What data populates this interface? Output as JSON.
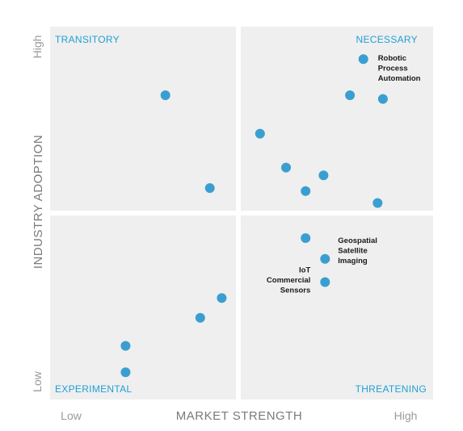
{
  "chart_data": {
    "type": "scatter",
    "title": "",
    "xlabel": "MARKET STRENGTH",
    "ylabel": "INDUSTRY ADOPTION",
    "x_axis_ends": {
      "low": "Low",
      "high": "High"
    },
    "y_axis_ends": {
      "low": "Low",
      "high": "High"
    },
    "xlim": [
      0,
      100
    ],
    "ylim": [
      0,
      100
    ],
    "grid": false,
    "quadrants": [
      {
        "name": "TRANSITORY",
        "position": "top-left"
      },
      {
        "name": "NECESSARY",
        "position": "top-right"
      },
      {
        "name": "EXPERIMENTAL",
        "position": "bottom-left"
      },
      {
        "name": "THREATENING",
        "position": "bottom-right"
      }
    ],
    "points": [
      {
        "x": 30.1,
        "y": 81.6,
        "label": ""
      },
      {
        "x": 41.7,
        "y": 56.7,
        "label": ""
      },
      {
        "x": 54.8,
        "y": 71.3,
        "label": ""
      },
      {
        "x": 61.6,
        "y": 62.2,
        "label": ""
      },
      {
        "x": 66.7,
        "y": 55.9,
        "label": ""
      },
      {
        "x": 71.4,
        "y": 60.1,
        "label": ""
      },
      {
        "x": 78.3,
        "y": 81.6,
        "label": ""
      },
      {
        "x": 81.8,
        "y": 91.3,
        "label": "Robotic Process Automation"
      },
      {
        "x": 86.9,
        "y": 80.6,
        "label": ""
      },
      {
        "x": 85.5,
        "y": 52.7,
        "label": ""
      },
      {
        "x": 66.7,
        "y": 43.3,
        "label": ""
      },
      {
        "x": 71.8,
        "y": 37.7,
        "label": "Geospatial Satellite Imaging"
      },
      {
        "x": 71.8,
        "y": 31.5,
        "label": "IoT Commercial Sensors"
      },
      {
        "x": 44.8,
        "y": 27.2,
        "label": ""
      },
      {
        "x": 39.2,
        "y": 21.9,
        "label": ""
      },
      {
        "x": 19.7,
        "y": 14.4,
        "label": ""
      },
      {
        "x": 19.7,
        "y": 7.3,
        "label": ""
      }
    ]
  }
}
